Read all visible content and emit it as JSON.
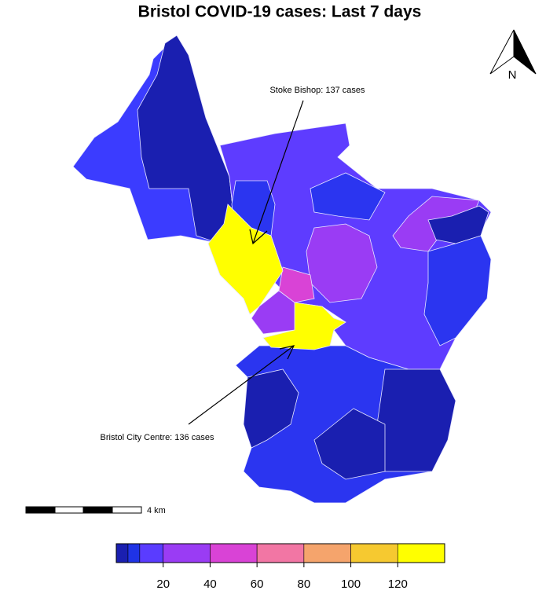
{
  "title": "Bristol COVID-19 cases: Last 7 days",
  "north_label": "N",
  "annotations": [
    "Stoke Bishop: 137 cases",
    "Bristol City Centre: 136 cases"
  ],
  "scale_label": "4 km",
  "legend": {
    "bins": [
      0,
      5,
      10,
      20,
      40,
      60,
      80,
      100,
      120,
      140
    ],
    "colors": [
      "#1a1fb0",
      "#1f33e6",
      "#5a3cff",
      "#9a3cf4",
      "#d943d6",
      "#f276a4",
      "#f5a46c",
      "#f6c930",
      "#ffff00"
    ],
    "lim": [
      0,
      140
    ],
    "ticks": [
      20,
      40,
      60,
      80,
      100,
      120
    ]
  }
}
